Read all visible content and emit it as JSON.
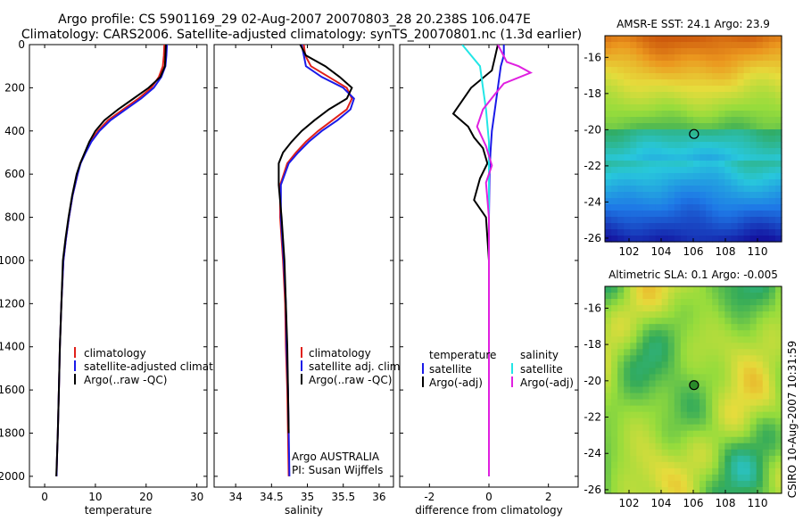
{
  "header": {
    "line1": "Argo profile: CS 5901169_29 02-Aug-2007 20070803_28 20.238S 106.047E",
    "line2": "Climatology: CARS2006. Satellite-adjusted climatology: synTS_20070801.nc (1.3d earlier)"
  },
  "footer_vertical": "CSIRO 10-Aug-2007 10:31:59",
  "colors": {
    "climatology": "#e0201a",
    "satellite": "#1a1ae8",
    "argo": "#000000",
    "cyan": "#22e6e6",
    "magenta": "#e020e0"
  },
  "chart_data": [
    {
      "type": "line",
      "id": "temperature",
      "xlabel": "temperature",
      "ylabel": "",
      "xlim": [
        -3,
        32
      ],
      "ylim": [
        2050,
        0
      ],
      "xticks": [
        0,
        10,
        20,
        30
      ],
      "yticks": [
        0,
        200,
        400,
        600,
        800,
        1000,
        1200,
        1400,
        1600,
        1800,
        2000
      ],
      "legend": [
        "climatology",
        "satellite-adjusted climatology",
        "Argo(..raw -QC)"
      ],
      "series": [
        {
          "name": "climatology",
          "color": "climatology",
          "x": [
            23.6,
            23.5,
            23.3,
            22.5,
            21,
            18.5,
            15.5,
            12.5,
            10.5,
            9,
            8,
            7,
            6.5,
            5.5,
            4.8,
            4.2,
            3.7,
            3.3,
            3,
            2.8,
            2.6,
            2.45,
            2.35
          ],
          "y": [
            0,
            50,
            100,
            150,
            200,
            250,
            300,
            350,
            400,
            450,
            500,
            550,
            600,
            700,
            800,
            900,
            1000,
            1200,
            1400,
            1600,
            1800,
            1900,
            2000
          ]
        },
        {
          "name": "satellite-adjusted climatology",
          "color": "satellite",
          "x": [
            24.1,
            24,
            23.8,
            23,
            21.5,
            19,
            16,
            13,
            10.8,
            9.2,
            8.1,
            7.1,
            6.5,
            5.5,
            4.8,
            4.2,
            3.7,
            3.3,
            3,
            2.8,
            2.6,
            2.45,
            2.35
          ],
          "y": [
            0,
            50,
            100,
            150,
            200,
            250,
            300,
            350,
            400,
            450,
            500,
            550,
            600,
            700,
            800,
            900,
            1000,
            1200,
            1400,
            1600,
            1800,
            1900,
            2000
          ]
        },
        {
          "name": "Argo(..raw -QC)",
          "color": "argo",
          "x": [
            23.9,
            23.8,
            23.7,
            22.8,
            20.5,
            17.5,
            14.5,
            11.8,
            10,
            8.8,
            7.9,
            7,
            6.3,
            5.4,
            4.7,
            4.1,
            3.6,
            3.3,
            3,
            2.8,
            2.6,
            2.45,
            2.3
          ],
          "y": [
            0,
            50,
            100,
            150,
            200,
            250,
            300,
            350,
            400,
            450,
            500,
            550,
            600,
            700,
            800,
            900,
            1000,
            1200,
            1400,
            1600,
            1800,
            1900,
            2000
          ]
        }
      ]
    },
    {
      "type": "line",
      "id": "salinity",
      "xlabel": "salinity",
      "xlim": [
        33.7,
        36.2
      ],
      "ylim": [
        2050,
        0
      ],
      "xticks": [
        34,
        34.5,
        35,
        35.5,
        36
      ],
      "xticklabels": [
        "34",
        "34.5",
        "35",
        "35.5",
        "36"
      ],
      "legend": [
        "climatology",
        "satellite adj. clim.",
        "Argo(..raw -QC)"
      ],
      "annotation": [
        "Argo AUSTRALIA",
        "PI: Susan Wijffels"
      ],
      "series": [
        {
          "name": "climatology",
          "color": "climatology",
          "x": [
            34.95,
            34.97,
            35.05,
            35.3,
            35.55,
            35.62,
            35.55,
            35.35,
            35.15,
            34.98,
            34.84,
            34.72,
            34.62,
            34.62,
            34.66,
            34.69,
            34.7,
            34.72,
            34.73,
            34.74
          ],
          "y": [
            0,
            50,
            100,
            150,
            200,
            250,
            300,
            350,
            400,
            450,
            500,
            550,
            650,
            800,
            1000,
            1200,
            1400,
            1600,
            1800,
            2000
          ]
        },
        {
          "name": "satellite adj. clim.",
          "color": "satellite",
          "x": [
            34.92,
            34.95,
            34.98,
            35.2,
            35.5,
            35.65,
            35.6,
            35.42,
            35.2,
            35.02,
            34.87,
            34.74,
            34.63,
            34.63,
            34.67,
            34.7,
            34.71,
            34.73,
            34.74,
            34.75
          ],
          "y": [
            0,
            50,
            100,
            150,
            200,
            250,
            300,
            350,
            400,
            450,
            500,
            550,
            650,
            800,
            1000,
            1200,
            1400,
            1600,
            1800,
            2000
          ]
        },
        {
          "name": "Argo(..raw -QC)",
          "color": "argo",
          "x": [
            34.9,
            34.98,
            35.25,
            35.45,
            35.62,
            35.55,
            35.3,
            35.1,
            34.92,
            34.78,
            34.66,
            34.6,
            34.6,
            34.64,
            34.68,
            34.7,
            34.72,
            34.73,
            34.74
          ],
          "y": [
            0,
            50,
            100,
            150,
            200,
            250,
            300,
            350,
            400,
            450,
            500,
            550,
            650,
            800,
            1000,
            1200,
            1400,
            1600,
            1800
          ]
        }
      ]
    },
    {
      "type": "line",
      "id": "difference",
      "xlabel": "difference from climatology",
      "xlim": [
        -3,
        3
      ],
      "ylim": [
        2050,
        0
      ],
      "xticks": [
        -2,
        0,
        2
      ],
      "legend_left_title": "temperature",
      "legend_right_title": "salinity",
      "legend_left": [
        "satellite",
        "Argo(-adj)"
      ],
      "legend_right": [
        "satellite",
        "Argo(-adj)"
      ],
      "series": [
        {
          "name": "temperature satellite",
          "color": "satellite",
          "x": [
            0.5,
            0.5,
            0.4,
            0.3,
            0.2,
            0.1,
            0.05,
            0.02,
            0,
            0,
            0,
            0
          ],
          "y": [
            0,
            50,
            100,
            200,
            300,
            400,
            500,
            600,
            800,
            1000,
            1500,
            2000
          ]
        },
        {
          "name": "temperature Argo(-adj)",
          "color": "argo",
          "x": [
            0.3,
            0.2,
            0.1,
            -0.6,
            -0.9,
            -1.2,
            -0.7,
            -0.5,
            -0.2,
            -0.05,
            -0.3,
            -0.5,
            -0.1,
            0,
            0,
            0
          ],
          "y": [
            0,
            60,
            120,
            200,
            260,
            320,
            380,
            430,
            480,
            550,
            620,
            720,
            800,
            1000,
            1500,
            2000
          ]
        },
        {
          "name": "salinity satellite",
          "color": "cyan",
          "x": [
            -0.9,
            -0.6,
            -0.3,
            -0.2,
            -0.1,
            0,
            0,
            0,
            0
          ],
          "y": [
            0,
            50,
            100,
            200,
            300,
            450,
            800,
            1500,
            2000
          ]
        },
        {
          "name": "salinity Argo(-adj)",
          "color": "magenta",
          "x": [
            0.3,
            0.6,
            1.0,
            1.4,
            0.5,
            0.2,
            -0.2,
            -0.4,
            -0.1,
            0.1,
            -0.1,
            0,
            0
          ],
          "y": [
            0,
            80,
            100,
            130,
            180,
            230,
            300,
            380,
            470,
            560,
            640,
            800,
            2000
          ]
        }
      ]
    },
    {
      "type": "heatmap",
      "id": "sst",
      "title": "AMSR-E SST: 24.1 Argo: 23.9",
      "xlim": [
        100.5,
        111.5
      ],
      "ylim": [
        -26.2,
        -14.8
      ],
      "xticks": [
        102,
        104,
        106,
        108,
        110
      ],
      "yticks": [
        -16,
        -18,
        -20,
        -22,
        -24,
        -26
      ],
      "marker": {
        "lon": 106.047,
        "lat": -20.238
      }
    },
    {
      "type": "heatmap",
      "id": "sla",
      "title": "Altimetric SLA: 0.1 Argo: -0.005",
      "xlim": [
        100.5,
        111.5
      ],
      "ylim": [
        -26.2,
        -14.8
      ],
      "xticks": [
        102,
        104,
        106,
        108,
        110
      ],
      "yticks": [
        -16,
        -18,
        -20,
        -22,
        -24,
        -26
      ],
      "marker": {
        "lon": 106.047,
        "lat": -20.238
      }
    }
  ]
}
